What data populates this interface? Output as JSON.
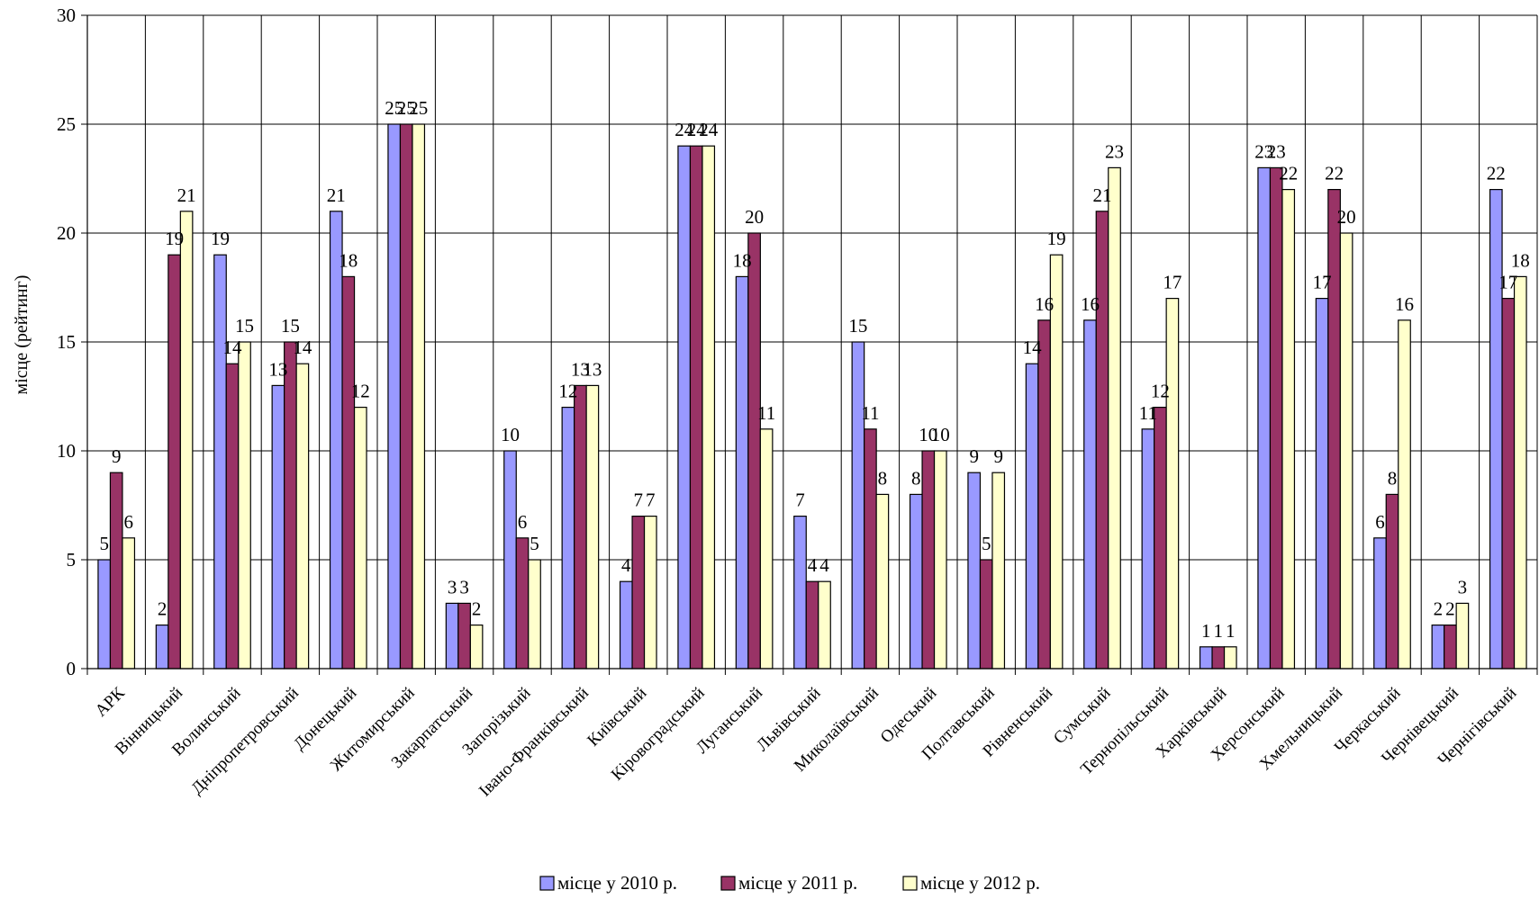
{
  "chart_data": {
    "type": "bar",
    "title": "",
    "xlabel": "",
    "ylabel": "місце (рейтинг)",
    "ylim": [
      0,
      30
    ],
    "yticks": [
      0,
      5,
      10,
      15,
      20,
      25,
      30
    ],
    "grid": true,
    "legend_position": "bottom",
    "categories": [
      "АРК",
      "Вінницький",
      "Волинський",
      "Дніпропетровський",
      "Донецький",
      "Житомирський",
      "Закарпатський",
      "Запорізький",
      "Івано-Франківський",
      "Київський",
      "Кіровоградський",
      "Луганський",
      "Львівський",
      "Миколаївський",
      "Одеський",
      "Полтавський",
      "Рівненський",
      "Сумський",
      "Тернопільський",
      "Харківський",
      "Херсонський",
      "Хмельницький",
      "Черкаський",
      "Чернівецький",
      "Чернігівський"
    ],
    "series": [
      {
        "name": "місце у 2010 р.",
        "color": "#9999ff",
        "values": [
          5,
          2,
          19,
          13,
          21,
          25,
          3,
          10,
          12,
          4,
          24,
          18,
          7,
          15,
          8,
          9,
          14,
          16,
          11,
          1,
          23,
          17,
          6,
          2,
          22
        ]
      },
      {
        "name": "місце у 2011 р.",
        "color": "#993366",
        "values": [
          9,
          19,
          14,
          15,
          18,
          25,
          3,
          6,
          13,
          7,
          24,
          20,
          4,
          11,
          10,
          5,
          16,
          21,
          12,
          1,
          23,
          22,
          8,
          2,
          17
        ]
      },
      {
        "name": "місце у 2012 р.",
        "color": "#ffffcc",
        "values": [
          6,
          21,
          15,
          14,
          12,
          25,
          2,
          5,
          13,
          7,
          24,
          11,
          4,
          8,
          10,
          9,
          19,
          23,
          17,
          1,
          22,
          20,
          16,
          3,
          18
        ]
      }
    ]
  }
}
